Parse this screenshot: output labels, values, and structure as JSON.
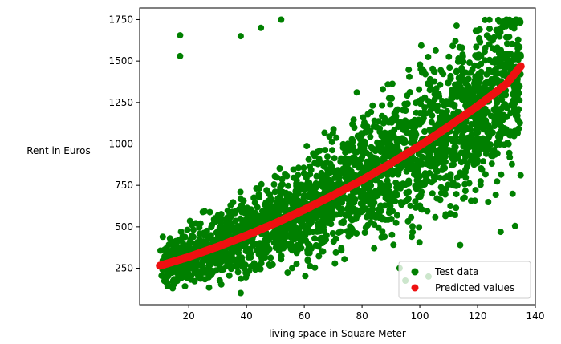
{
  "chart_data": {
    "type": "scatter",
    "title": "",
    "xlabel": "living space in Square Meter",
    "ylabel": "Rent in Euros",
    "xlim": [
      3,
      140
    ],
    "ylim": [
      30,
      1820
    ],
    "xticks": [
      20,
      40,
      60,
      80,
      100,
      120,
      140
    ],
    "yticks": [
      250,
      500,
      750,
      1000,
      1250,
      1500,
      1750
    ],
    "grid": false,
    "legend_position": "bottom-right",
    "series": [
      {
        "name": "Test data",
        "color": "#008000",
        "kind": "scatter",
        "x_range": [
          10,
          135
        ],
        "y_range": [
          100,
          1750
        ],
        "note_points": [
          [
            17,
            1655
          ],
          [
            17,
            1530
          ],
          [
            11,
            440
          ],
          [
            15,
            155
          ],
          [
            38,
            100
          ],
          [
            128,
            470
          ],
          [
            133,
            505
          ],
          [
            114,
            390
          ],
          [
            95,
            175
          ],
          [
            93,
            250
          ],
          [
            103,
            200
          ],
          [
            52,
            1750
          ],
          [
            130,
            1750
          ],
          [
            38,
            1650
          ],
          [
            45,
            1700
          ]
        ]
      },
      {
        "name": "Predicted values",
        "color": "#ff0000",
        "kind": "curve",
        "x": [
          10,
          20,
          30,
          40,
          50,
          60,
          70,
          80,
          90,
          100,
          110,
          120,
          130,
          135
        ],
        "y": [
          265,
          318,
          380,
          448,
          522,
          603,
          690,
          782,
          883,
          990,
          1105,
          1228,
          1362,
          1470
        ]
      }
    ]
  }
}
